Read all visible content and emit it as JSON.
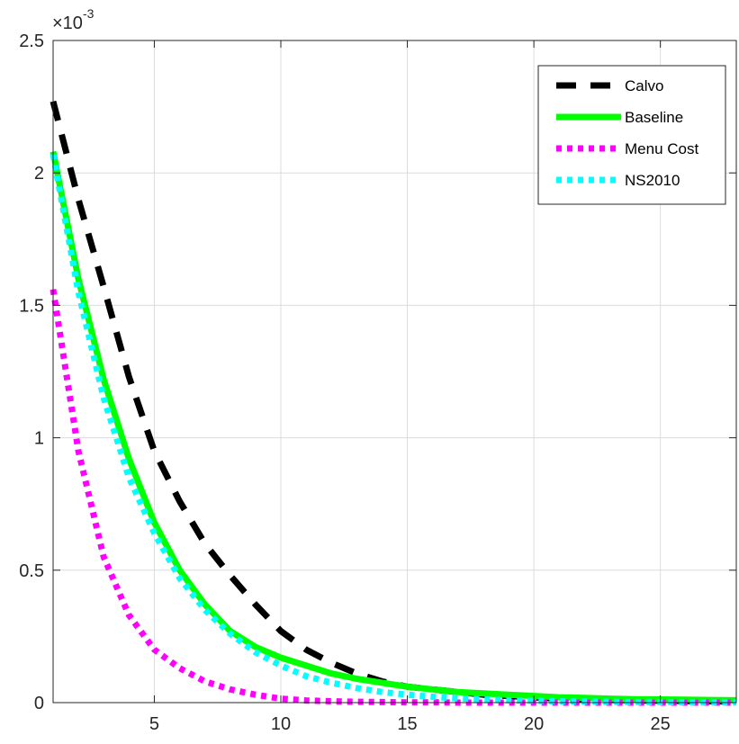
{
  "chart_data": {
    "type": "line",
    "exponent_label": "×10",
    "exponent_power": "-3",
    "xlim": [
      1,
      28
    ],
    "ylim": [
      0,
      2.5
    ],
    "x_ticks": [
      5,
      10,
      15,
      20,
      25
    ],
    "x_tick_labels": [
      "5",
      "10",
      "15",
      "20",
      "25"
    ],
    "y_ticks": [
      0,
      0.5,
      1,
      1.5,
      2,
      2.5
    ],
    "y_tick_labels": [
      "0",
      "0.5",
      "1",
      "1.5",
      "2",
      "2.5"
    ],
    "grid": true,
    "legend_position": "top-right",
    "x": [
      1,
      2,
      3,
      4,
      5,
      6,
      7,
      8,
      9,
      10,
      11,
      12,
      13,
      14,
      15,
      16,
      17,
      18,
      19,
      20,
      21,
      22,
      23,
      24,
      25,
      26,
      27,
      28
    ],
    "series": [
      {
        "name": "Calvo",
        "color": "#000000",
        "style": "dashed",
        "values": [
          2.27,
          1.9,
          1.57,
          1.23,
          0.95,
          0.76,
          0.6,
          0.48,
          0.37,
          0.27,
          0.2,
          0.15,
          0.11,
          0.08,
          0.06,
          0.05,
          0.04,
          0.03,
          0.025,
          0.02,
          0.015,
          0.012,
          0.01,
          0.008,
          0.007,
          0.006,
          0.005,
          0.004
        ]
      },
      {
        "name": "Baseline",
        "color": "#00ff00",
        "style": "solid",
        "values": [
          2.08,
          1.6,
          1.22,
          0.92,
          0.68,
          0.5,
          0.37,
          0.27,
          0.21,
          0.17,
          0.14,
          0.11,
          0.09,
          0.075,
          0.06,
          0.05,
          0.04,
          0.035,
          0.03,
          0.025,
          0.02,
          0.018,
          0.015,
          0.013,
          0.012,
          0.011,
          0.01,
          0.009
        ]
      },
      {
        "name": "Menu Cost",
        "color": "#ff00ff",
        "style": "dotted",
        "values": [
          1.56,
          0.95,
          0.55,
          0.33,
          0.2,
          0.13,
          0.08,
          0.05,
          0.03,
          0.015,
          0.008,
          0.005,
          0.003,
          0.002,
          0.001,
          0.001,
          0.0,
          0.0,
          0.0,
          0.0,
          0.0,
          0.0,
          0.0,
          0.0,
          0.0,
          0.0,
          0.0,
          0.0
        ]
      },
      {
        "name": "NS2010",
        "color": "#00ffff",
        "style": "dotted",
        "values": [
          2.07,
          1.55,
          1.15,
          0.85,
          0.64,
          0.47,
          0.35,
          0.26,
          0.19,
          0.14,
          0.1,
          0.075,
          0.055,
          0.04,
          0.03,
          0.022,
          0.016,
          0.012,
          0.009,
          0.007,
          0.005,
          0.004,
          0.003,
          0.002,
          0.002,
          0.001,
          0.001,
          0.001
        ]
      }
    ]
  }
}
